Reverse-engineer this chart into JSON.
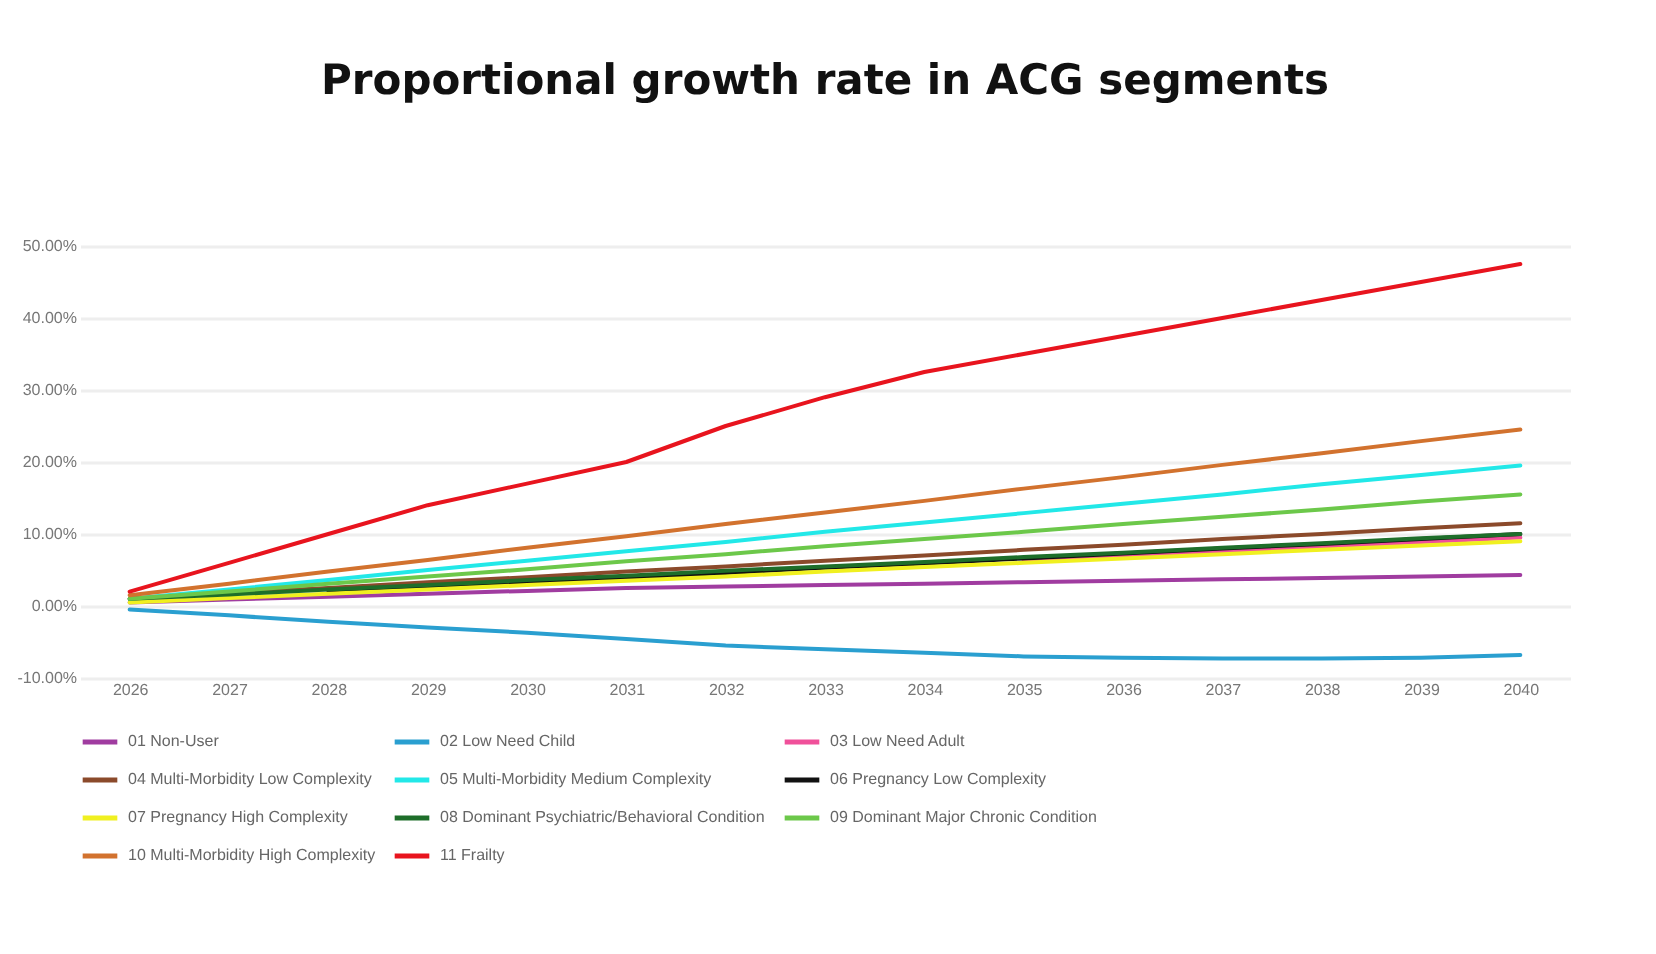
{
  "chart_data": {
    "type": "line",
    "title": "Proportional growth rate in ACG segments",
    "categories": [
      "2026",
      "2027",
      "2028",
      "2029",
      "2030",
      "2031",
      "2032",
      "2033",
      "2034",
      "2035",
      "2036",
      "2037",
      "2038",
      "2039",
      "2040"
    ],
    "ylim": [
      -10,
      50
    ],
    "yticks": [
      {
        "value": -10,
        "label": "-10.00%"
      },
      {
        "value": 0,
        "label": "0.00%"
      },
      {
        "value": 10,
        "label": "10.00%"
      },
      {
        "value": 20,
        "label": "20.00%"
      },
      {
        "value": 30,
        "label": "30.00%"
      },
      {
        "value": 40,
        "label": "40.00%"
      },
      {
        "value": 50,
        "label": "50.00%"
      }
    ],
    "grid": "y",
    "legend": "bottom",
    "line_style": "solid",
    "marker": "none",
    "series": [
      {
        "name": "01 Non-User",
        "color": "#a03ca0",
        "values": [
          0.5,
          0.9,
          1.3,
          1.7,
          2.1,
          2.5,
          2.7,
          2.9,
          3.1,
          3.3,
          3.5,
          3.7,
          3.9,
          4.1,
          4.3
        ]
      },
      {
        "name": "02 Low Need Child",
        "color": "#2a9fd0",
        "values": [
          -0.5,
          -1.3,
          -2.2,
          -3,
          -3.7,
          -4.6,
          -5.5,
          -6,
          -6.5,
          -7,
          -7.2,
          -7.3,
          -7.3,
          -7.2,
          -6.8
        ]
      },
      {
        "name": "03 Low Need Adult",
        "color": "#f0509a",
        "values": [
          null,
          null,
          null,
          null,
          null,
          null,
          null,
          null,
          null,
          6.3,
          6.9,
          7.6,
          8.2,
          8.9,
          9.5
        ]
      },
      {
        "name": "04 Multi-Morbidity Low Complexity",
        "color": "#8b4a2b",
        "values": [
          1,
          1.8,
          2.5,
          3.3,
          4,
          4.8,
          5.5,
          6.3,
          7,
          7.8,
          8.5,
          9.3,
          10,
          10.8,
          11.5
        ]
      },
      {
        "name": "05 Multi-Morbidity Medium Complexity",
        "color": "#22e8e8",
        "values": [
          1,
          2.3,
          3.6,
          5,
          6.3,
          7.6,
          8.9,
          10.3,
          11.6,
          12.9,
          14.2,
          15.5,
          16.9,
          18.2,
          19.5
        ]
      },
      {
        "name": "06 Pregnancy Low Complexity",
        "color": "#111111",
        "values": [
          null,
          null,
          1.9,
          2.5,
          3.2,
          3.9,
          4.6,
          5.3,
          5.9,
          6.6,
          7.3,
          8,
          8.6,
          9.3,
          10
        ]
      },
      {
        "name": "07 Pregnancy High Complexity",
        "color": "#f0f020",
        "values": [
          0.5,
          1.1,
          1.7,
          2.3,
          2.9,
          3.5,
          4.1,
          4.8,
          5.4,
          6,
          6.6,
          7.2,
          7.8,
          8.4,
          9
        ]
      },
      {
        "name": "08 Dominant Psychiatric/Behavioral Condition",
        "color": "#1e6e2a",
        "values": [
          1,
          1.6,
          2.3,
          2.9,
          3.6,
          4.2,
          4.9,
          5.5,
          6.1,
          6.8,
          7.4,
          8.1,
          8.7,
          9.4,
          10
        ]
      },
      {
        "name": "09 Dominant Major Chronic Condition",
        "color": "#6cc84a",
        "values": [
          1,
          2,
          3.1,
          4.1,
          5.1,
          6.2,
          7.2,
          8.3,
          9.3,
          10.3,
          11.4,
          12.4,
          13.4,
          14.5,
          15.5
        ]
      },
      {
        "name": "10 Multi-Morbidity High Complexity",
        "color": "#d2722e",
        "values": [
          1.5,
          3.1,
          4.8,
          6.4,
          8.1,
          9.7,
          11.4,
          13,
          14.6,
          16.3,
          17.9,
          19.6,
          21.2,
          22.9,
          24.5
        ]
      },
      {
        "name": "11 Frailty",
        "color": "#e8141e",
        "values": [
          2,
          6,
          10,
          14,
          17,
          20,
          25,
          29,
          32.5,
          35,
          37.5,
          40,
          42.5,
          45,
          47.5
        ]
      }
    ]
  }
}
